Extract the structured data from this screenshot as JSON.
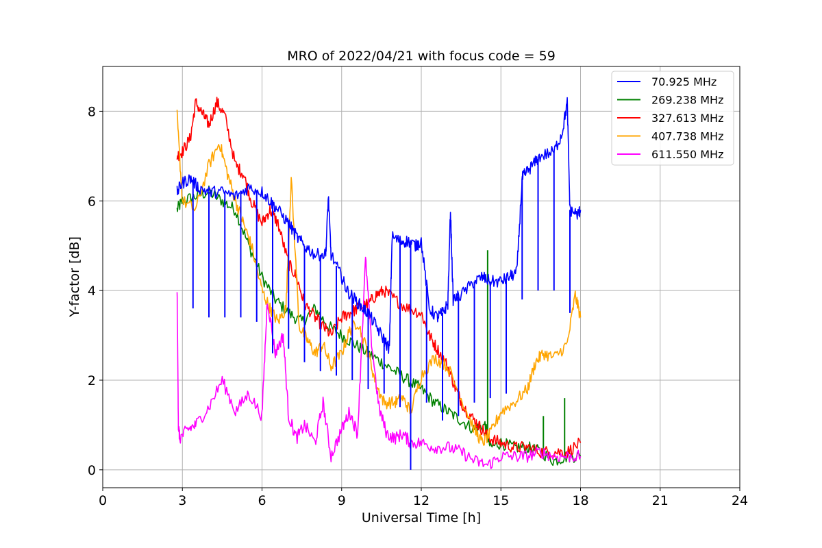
{
  "chart_data": {
    "type": "line",
    "title": "MRO of 2022/04/21 with focus code = 59",
    "xlabel": "Universal Time [h]",
    "ylabel": "Y-factor [dB]",
    "xlim": [
      0,
      24
    ],
    "ylim": [
      -0.4,
      9.0
    ],
    "xticks": [
      0,
      3,
      6,
      9,
      12,
      15,
      18,
      21,
      24
    ],
    "yticks": [
      0,
      2,
      4,
      6,
      8
    ],
    "grid": true,
    "legend_position": "top-right",
    "series": [
      {
        "name": "  70.925 MHz",
        "color": "#0000ff",
        "x": [
          2.8,
          3.0,
          3.3,
          3.6,
          4.0,
          4.5,
          5.0,
          5.5,
          6.0,
          6.3,
          6.6,
          7.0,
          7.3,
          7.6,
          8.0,
          8.4,
          8.5,
          8.6,
          9.0,
          9.2,
          9.5,
          9.8,
          10.0,
          10.3,
          10.6,
          10.8,
          10.9,
          11.2,
          11.5,
          11.8,
          12.0,
          12.3,
          12.6,
          12.8,
          13.0,
          13.1,
          13.2,
          13.5,
          14.0,
          14.3,
          14.6,
          15.0,
          15.3,
          15.6,
          15.8,
          15.9,
          16.2,
          16.5,
          17.0,
          17.3,
          17.5,
          17.6,
          17.9,
          18.0
        ],
        "y": [
          6.2,
          6.4,
          6.5,
          6.3,
          6.2,
          6.2,
          6.1,
          6.3,
          6.2,
          6.0,
          5.8,
          5.5,
          5.2,
          5.0,
          4.8,
          4.8,
          6.1,
          4.8,
          4.3,
          4.0,
          3.8,
          3.6,
          3.5,
          3.2,
          2.9,
          2.7,
          5.2,
          5.1,
          5.1,
          5.0,
          5.1,
          3.6,
          3.4,
          3.5,
          3.7,
          5.8,
          3.8,
          3.9,
          4.2,
          4.3,
          4.2,
          4.2,
          4.3,
          4.4,
          6.5,
          6.6,
          6.8,
          7.0,
          7.1,
          7.5,
          8.2,
          5.8,
          5.7,
          5.8
        ],
        "dips": [
          [
            3.4,
            3.6
          ],
          [
            4.0,
            3.4
          ],
          [
            4.6,
            3.4
          ],
          [
            5.2,
            3.4
          ],
          [
            5.8,
            3.3
          ],
          [
            6.4,
            2.6
          ],
          [
            7.0,
            2.7
          ],
          [
            7.6,
            2.4
          ],
          [
            8.2,
            2.2
          ],
          [
            8.8,
            2.1
          ],
          [
            9.4,
            2.0
          ],
          [
            10.0,
            1.8
          ],
          [
            10.6,
            1.7
          ],
          [
            11.2,
            1.4
          ],
          [
            11.6,
            0.0
          ],
          [
            12.2,
            1.5
          ],
          [
            12.8,
            1.1
          ],
          [
            13.4,
            1.2
          ],
          [
            14.0,
            1.5
          ],
          [
            14.6,
            1.6
          ],
          [
            15.2,
            1.7
          ],
          [
            15.8,
            3.8
          ],
          [
            16.4,
            4.0
          ],
          [
            17.0,
            4.0
          ],
          [
            17.6,
            3.5
          ]
        ]
      },
      {
        "name": "269.238 MHz",
        "color": "#008000",
        "x": [
          2.8,
          3.0,
          3.5,
          4.0,
          4.5,
          5.0,
          5.5,
          6.0,
          6.5,
          7.0,
          7.5,
          8.0,
          8.5,
          9.0,
          9.5,
          10.0,
          10.5,
          11.0,
          11.5,
          12.0,
          12.5,
          13.0,
          13.5,
          14.0,
          14.4,
          14.6,
          15.0,
          15.5,
          16.0,
          16.5,
          17.0,
          17.5,
          18.0
        ],
        "y": [
          5.8,
          6.0,
          6.1,
          6.2,
          6.0,
          5.8,
          5.0,
          4.3,
          3.8,
          3.5,
          3.3,
          3.6,
          3.2,
          3.0,
          2.8,
          2.6,
          2.4,
          2.2,
          2.0,
          1.8,
          1.5,
          1.3,
          1.1,
          0.9,
          1.0,
          0.5,
          0.6,
          0.5,
          0.5,
          0.4,
          0.2,
          0.3,
          0.3
        ],
        "spikes": [
          [
            14.5,
            4.9
          ],
          [
            16.6,
            1.2
          ],
          [
            17.4,
            1.6
          ]
        ]
      },
      {
        "name": "327.613 MHz",
        "color": "#ff0000",
        "x": [
          2.8,
          3.0,
          3.3,
          3.5,
          3.8,
          4.0,
          4.3,
          4.6,
          5.0,
          5.3,
          5.6,
          6.0,
          6.3,
          6.6,
          7.0,
          7.3,
          7.6,
          8.0,
          8.3,
          8.6,
          9.0,
          9.3,
          9.6,
          10.0,
          10.3,
          10.6,
          11.0,
          11.5,
          12.0,
          12.3,
          12.6,
          13.0,
          13.3,
          13.6,
          14.0,
          14.3,
          14.6,
          15.0,
          15.5,
          16.0,
          16.5,
          17.0,
          17.5,
          18.0
        ],
        "y": [
          7.0,
          7.1,
          7.4,
          8.2,
          7.9,
          7.7,
          8.2,
          7.9,
          6.8,
          6.6,
          6.0,
          5.5,
          5.8,
          5.5,
          4.6,
          4.3,
          3.7,
          3.4,
          3.2,
          3.0,
          3.4,
          3.5,
          3.6,
          3.7,
          3.9,
          4.0,
          3.8,
          3.6,
          3.5,
          3.0,
          2.7,
          2.3,
          1.8,
          1.4,
          1.1,
          0.9,
          0.7,
          0.6,
          0.5,
          0.5,
          0.4,
          0.4,
          0.4,
          0.6
        ]
      },
      {
        "name": "407.738 MHz",
        "color": "#ffa500",
        "x": [
          2.8,
          3.0,
          3.5,
          4.0,
          4.4,
          4.7,
          5.0,
          5.3,
          5.6,
          6.0,
          6.3,
          6.6,
          6.9,
          7.1,
          7.4,
          7.7,
          8.0,
          8.3,
          8.6,
          9.0,
          9.3,
          9.6,
          10.0,
          10.3,
          10.6,
          11.0,
          11.3,
          11.6,
          12.0,
          12.5,
          13.0,
          13.5,
          14.0,
          14.3,
          14.6,
          15.0,
          15.5,
          16.0,
          16.3,
          16.6,
          17.0,
          17.5,
          17.8,
          18.0
        ],
        "y": [
          7.9,
          6.0,
          5.8,
          6.8,
          7.3,
          6.6,
          6.0,
          5.5,
          5.0,
          4.0,
          3.6,
          3.3,
          3.6,
          6.5,
          3.2,
          2.9,
          2.6,
          2.8,
          2.3,
          2.6,
          3.1,
          3.3,
          2.6,
          1.9,
          1.5,
          1.5,
          1.6,
          1.3,
          2.1,
          2.5,
          2.3,
          1.6,
          0.9,
          0.6,
          0.8,
          1.3,
          1.5,
          1.8,
          2.4,
          2.6,
          2.5,
          2.8,
          3.9,
          3.4
        ]
      },
      {
        "name": "611.550 MHz",
        "color": "#ff00ff",
        "x": [
          2.8,
          2.85,
          2.9,
          3.2,
          3.5,
          4.0,
          4.5,
          5.0,
          5.5,
          6.0,
          6.2,
          6.5,
          6.8,
          7.0,
          7.3,
          7.6,
          8.0,
          8.3,
          8.6,
          9.0,
          9.3,
          9.6,
          9.9,
          10.1,
          10.4,
          10.7,
          11.0,
          11.3,
          11.6,
          12.0,
          12.5,
          13.0,
          13.5,
          14.0,
          14.5,
          15.0,
          15.5,
          16.0,
          16.5,
          17.0,
          17.5,
          18.0
        ],
        "y": [
          4.0,
          1.0,
          0.7,
          0.9,
          1.0,
          1.4,
          2.0,
          1.3,
          1.7,
          1.2,
          3.8,
          2.6,
          3.0,
          1.2,
          0.7,
          1.0,
          0.6,
          1.5,
          0.3,
          0.9,
          1.3,
          0.8,
          4.7,
          3.0,
          1.4,
          0.8,
          0.7,
          0.8,
          0.6,
          0.6,
          0.5,
          0.5,
          0.4,
          0.2,
          0.1,
          0.3,
          0.3,
          0.3,
          0.4,
          0.3,
          0.3,
          0.3
        ]
      }
    ]
  }
}
